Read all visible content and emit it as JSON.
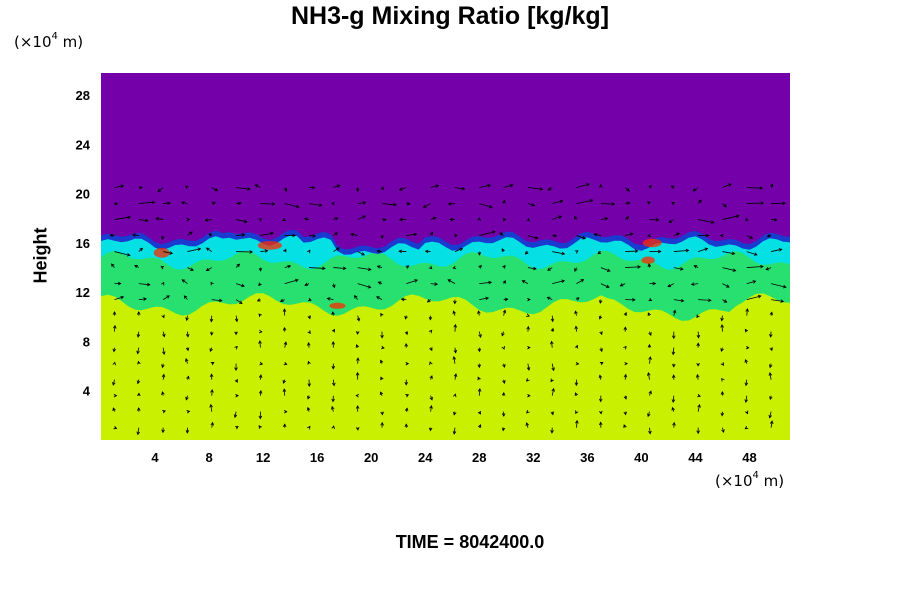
{
  "chart_data": {
    "type": "heatmap",
    "title": "NH3-g Mixing Ratio [kg/kg]",
    "ylabel": "Height",
    "xlabel": "",
    "y_unit_label": {
      "prefix": "(×10",
      "exp": "4",
      "suffix": " m)"
    },
    "x_unit_label": {
      "prefix": "(×10",
      "exp": "4",
      "suffix": " m)"
    },
    "footer": "TIME = 8042400.0",
    "xlim": [
      0,
      51
    ],
    "ylim": [
      0,
      29.8
    ],
    "x_ticks": [
      "4",
      "8",
      "12",
      "16",
      "20",
      "24",
      "28",
      "32",
      "36",
      "40",
      "44",
      "48"
    ],
    "y_ticks": [
      "4",
      "8",
      "12",
      "16",
      "20",
      "24",
      "28"
    ],
    "x_tick_values": [
      4,
      8,
      12,
      16,
      20,
      24,
      28,
      32,
      36,
      40,
      44,
      48
    ],
    "y_tick_values": [
      4,
      8,
      12,
      16,
      20,
      24,
      28
    ],
    "colors": {
      "upper": "#7300a8",
      "cloud_top": "#1a3bd0",
      "cyan": "#00e0f0",
      "green": "#28e070",
      "lower": "#c8f000",
      "hot": "#ff2a00"
    },
    "layers": [
      {
        "name": "upper-region",
        "y_range": [
          16.5,
          29.8
        ]
      },
      {
        "name": "cloud-layer",
        "y_range": [
          11,
          16.5
        ]
      },
      {
        "name": "lower-region",
        "y_range": [
          0,
          11
        ]
      }
    ],
    "vector_field": "wind arrows overlaid"
  }
}
